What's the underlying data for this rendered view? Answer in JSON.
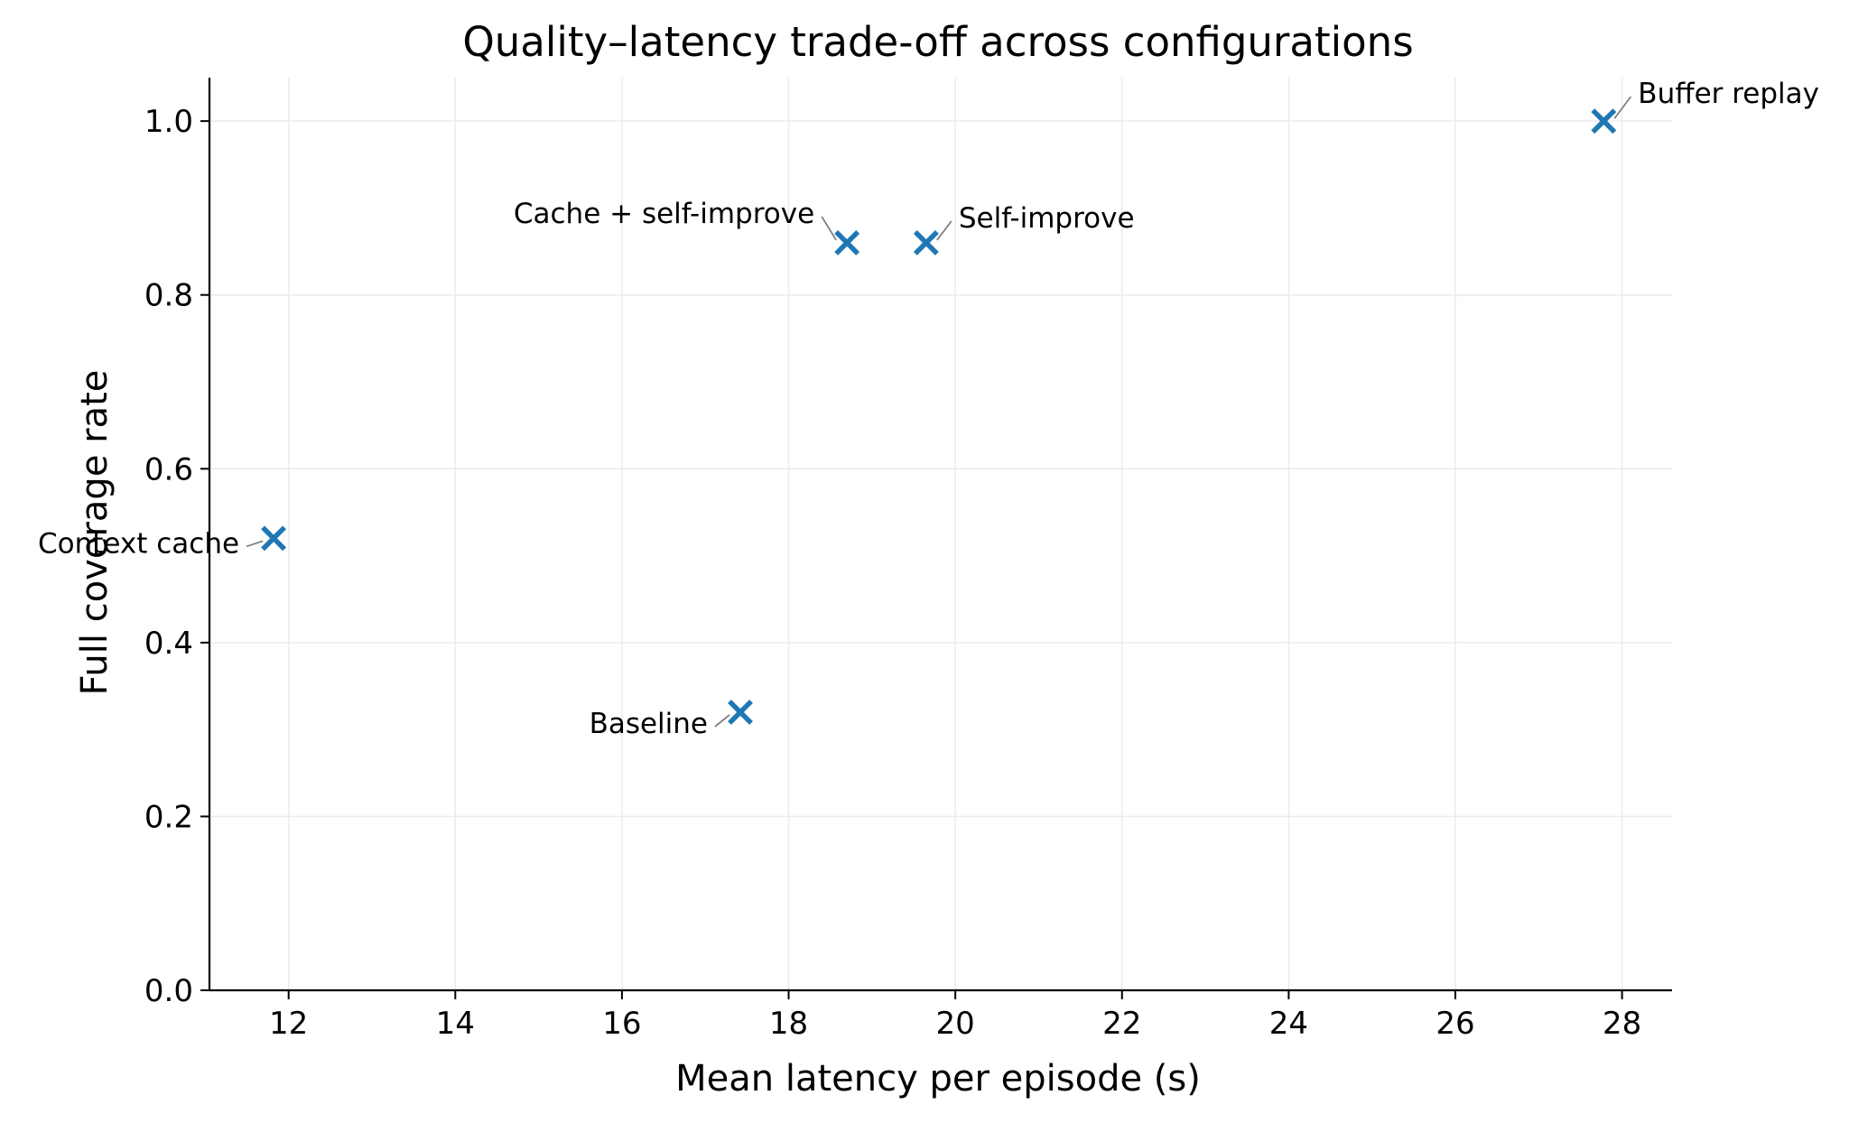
{
  "chart_data": {
    "type": "scatter",
    "title": "Quality–latency trade-off across configurations",
    "xlabel": "Mean latency per episode (s)",
    "ylabel": "Full coverage rate",
    "xlim": [
      11.05,
      28.6
    ],
    "ylim": [
      0.0,
      1.05
    ],
    "xticks": [
      12,
      14,
      16,
      18,
      20,
      22,
      24,
      26,
      28
    ],
    "yticks": [
      0.0,
      0.2,
      0.4,
      0.6,
      0.8,
      1.0
    ],
    "xtick_labels": [
      "12",
      "14",
      "16",
      "18",
      "20",
      "22",
      "24",
      "26",
      "28"
    ],
    "ytick_labels": [
      "0.0",
      "0.2",
      "0.4",
      "0.6",
      "0.8",
      "1.0"
    ],
    "grid": true,
    "marker": "x",
    "marker_color": "#1f77b4",
    "points": [
      {
        "label": "Buffer replay",
        "x": 27.78,
        "y": 1.0
      },
      {
        "label": "Cache + self-improve",
        "x": 18.7,
        "y": 0.86
      },
      {
        "label": "Self-improve",
        "x": 19.65,
        "y": 0.86
      },
      {
        "label": "Context cache",
        "x": 11.82,
        "y": 0.52
      },
      {
        "label": "Baseline",
        "x": 17.42,
        "y": 0.32
      }
    ]
  }
}
